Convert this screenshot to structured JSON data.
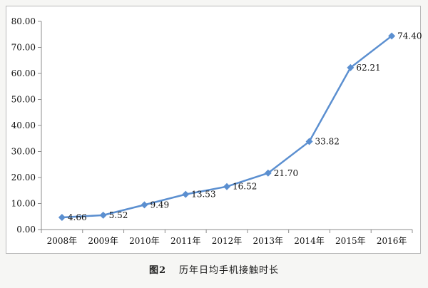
{
  "caption": {
    "figure_number": "图2",
    "title": "历年日均手机接触时长"
  },
  "colors": {
    "series": "#5b8fd0",
    "axis": "#8c8c8c",
    "text": "#111111"
  },
  "chart_data": {
    "type": "line",
    "title": "",
    "xlabel": "",
    "ylabel": "",
    "categories": [
      "2008年",
      "2009年",
      "2010年",
      "2011年",
      "2012年",
      "2013年",
      "2014年",
      "2015年",
      "2016年"
    ],
    "series": [
      {
        "values": [
          4.66,
          5.52,
          9.49,
          13.53,
          16.52,
          21.7,
          33.82,
          62.21,
          74.4
        ],
        "labels": [
          "4.66",
          "5.52",
          "9.49",
          "13.53",
          "16.52",
          "21.70",
          "33.82",
          "62.21",
          "74.40"
        ]
      }
    ],
    "ylim": [
      0,
      80
    ],
    "yticks": [
      0,
      10,
      20,
      30,
      40,
      50,
      60,
      70,
      80
    ],
    "ytick_labels": [
      "0.00",
      "10.00",
      "20.00",
      "30.00",
      "40.00",
      "50.00",
      "60.00",
      "70.00",
      "80.00"
    ],
    "grid": false,
    "legend": "none",
    "marker": "diamond"
  }
}
